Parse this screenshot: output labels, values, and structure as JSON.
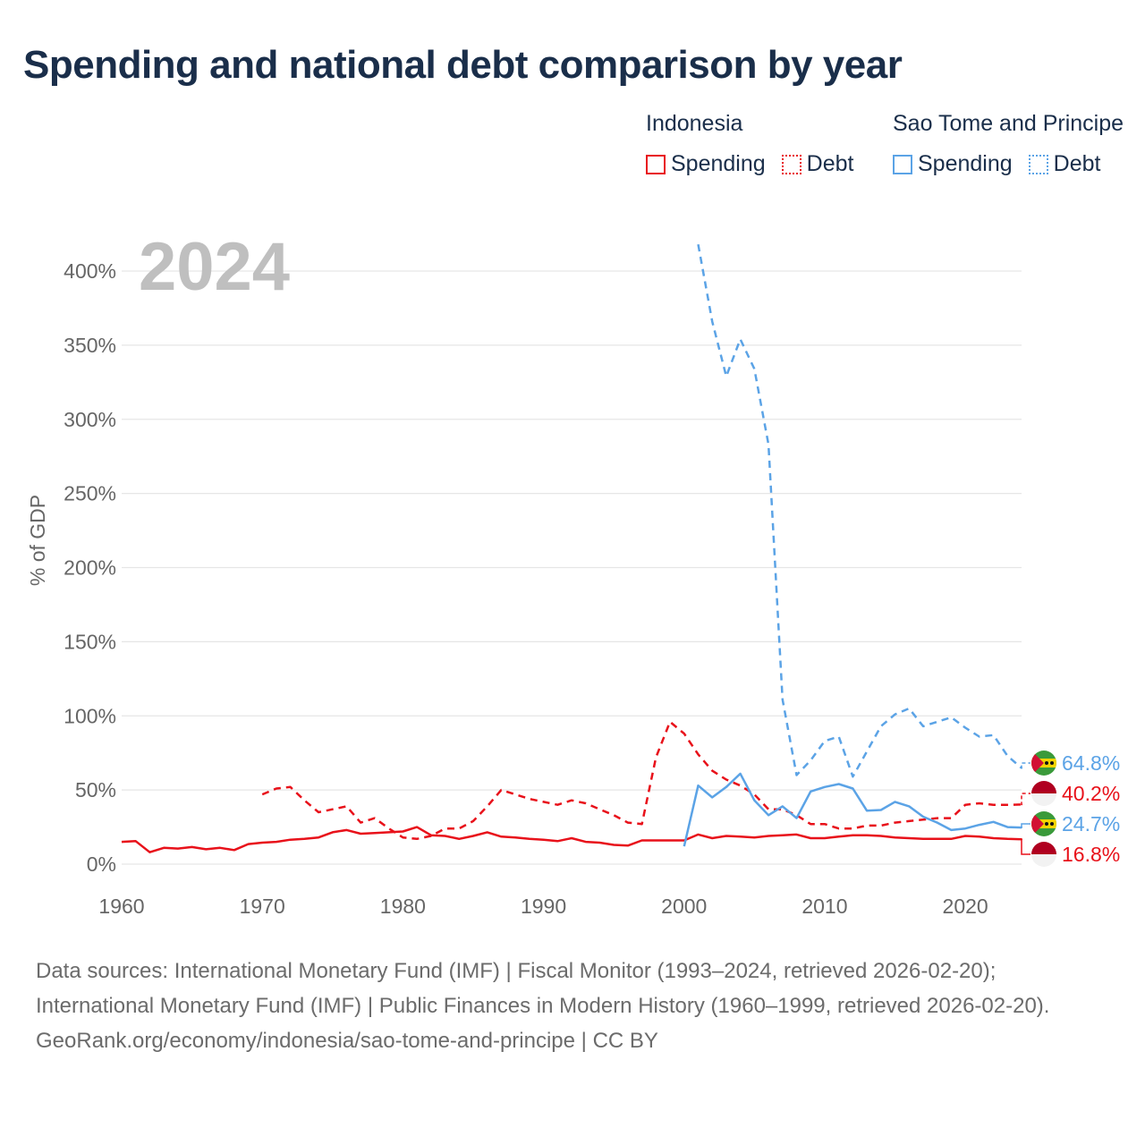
{
  "title": "Spending and national debt comparison by year",
  "legend": {
    "groups": [
      {
        "country": "Indonesia",
        "color": "#e8111a",
        "items": [
          {
            "label": "Spending",
            "style": "solid"
          },
          {
            "label": "Debt",
            "style": "dotted"
          }
        ]
      },
      {
        "country": "Sao Tome and Principe",
        "color": "#5ba3e6",
        "items": [
          {
            "label": "Spending",
            "style": "solid"
          },
          {
            "label": "Debt",
            "style": "dotted"
          }
        ]
      }
    ]
  },
  "chart_data": {
    "type": "line",
    "year_label": "2024",
    "ylabel": "% of GDP",
    "xlim": [
      1960,
      2024
    ],
    "ylim": [
      0,
      400
    ],
    "x_ticks": [
      1960,
      1970,
      1980,
      1990,
      2000,
      2010,
      2020
    ],
    "y_ticks": [
      0,
      50,
      100,
      150,
      200,
      250,
      300,
      350,
      400
    ],
    "y_tick_labels": [
      "0%",
      "50%",
      "100%",
      "150%",
      "200%",
      "250%",
      "300%",
      "350%",
      "400%"
    ],
    "grid": true,
    "series": [
      {
        "name": "Indonesia Spending",
        "country": "Indonesia",
        "color": "#e8111a",
        "dash": "solid",
        "label": "16.8%",
        "x": [
          1960,
          1961,
          1962,
          1963,
          1964,
          1965,
          1966,
          1967,
          1968,
          1969,
          1970,
          1971,
          1972,
          1973,
          1974,
          1975,
          1976,
          1977,
          1978,
          1979,
          1980,
          1981,
          1982,
          1983,
          1984,
          1985,
          1986,
          1987,
          1988,
          1989,
          1990,
          1991,
          1992,
          1993,
          1994,
          1995,
          1996,
          1997,
          1998,
          1999,
          2000,
          2001,
          2002,
          2003,
          2004,
          2005,
          2006,
          2007,
          2008,
          2009,
          2010,
          2011,
          2012,
          2013,
          2014,
          2015,
          2016,
          2017,
          2018,
          2019,
          2020,
          2021,
          2022,
          2023,
          2024
        ],
        "values": [
          15,
          15.5,
          8,
          11,
          10.5,
          11.5,
          10,
          11,
          9.5,
          13.5,
          14.5,
          15,
          16.5,
          17,
          18,
          21.5,
          23,
          20.5,
          21,
          21.5,
          22,
          25,
          19.5,
          19,
          17,
          19,
          21.5,
          18.5,
          18,
          17,
          16.5,
          15.5,
          17.5,
          15,
          14.5,
          13,
          12.5,
          16,
          16,
          16,
          16,
          20,
          17.5,
          19,
          18.5,
          18,
          19,
          19.5,
          20,
          17.5,
          17.5,
          18.5,
          19.5,
          19.5,
          19,
          18,
          17.5,
          17,
          17,
          17,
          19,
          18.5,
          17.5,
          17,
          16.8
        ]
      },
      {
        "name": "Indonesia Debt",
        "country": "Indonesia",
        "color": "#e8111a",
        "dash": "dashed",
        "label": "40.2%",
        "x": [
          1970,
          1971,
          1972,
          1973,
          1974,
          1975,
          1976,
          1977,
          1978,
          1979,
          1980,
          1981,
          1982,
          1983,
          1984,
          1985,
          1986,
          1987,
          1988,
          1989,
          1990,
          1991,
          1992,
          1993,
          1994,
          1995,
          1996,
          1997,
          1998,
          1999,
          2000,
          2001,
          2002,
          2003,
          2004,
          2005,
          2006,
          2007,
          2008,
          2009,
          2010,
          2011,
          2012,
          2013,
          2014,
          2015,
          2016,
          2017,
          2018,
          2019,
          2020,
          2021,
          2022,
          2023,
          2024
        ],
        "values": [
          47,
          51,
          52,
          43,
          35,
          37,
          39,
          28,
          31,
          24,
          18,
          17,
          19,
          24,
          24,
          29,
          39,
          50,
          47,
          44,
          42,
          40,
          43,
          41,
          37,
          33,
          28,
          27,
          72,
          96,
          88,
          74,
          63,
          57,
          53,
          47,
          37,
          37,
          33,
          27,
          27,
          24,
          24,
          26,
          26,
          28,
          29,
          30,
          31,
          31,
          40,
          41,
          40,
          40,
          40.2
        ]
      },
      {
        "name": "Sao Tome and Principe Spending",
        "country": "Sao Tome and Principe",
        "color": "#5ba3e6",
        "dash": "solid",
        "label": "24.7%",
        "x": [
          2000,
          2001,
          2002,
          2003,
          2004,
          2005,
          2006,
          2007,
          2008,
          2009,
          2010,
          2011,
          2012,
          2013,
          2014,
          2015,
          2016,
          2017,
          2018,
          2019,
          2020,
          2021,
          2022,
          2023,
          2024
        ],
        "values": [
          12,
          53,
          45,
          52,
          61,
          43,
          33,
          39,
          31,
          49,
          52,
          54,
          51,
          36,
          36.5,
          42,
          39,
          32,
          28,
          23,
          24,
          26.5,
          28.5,
          25,
          24.7
        ]
      },
      {
        "name": "Sao Tome and Principe Debt",
        "country": "Sao Tome and Principe",
        "color": "#5ba3e6",
        "dash": "dashed",
        "label": "64.8%",
        "x": [
          2001,
          2002,
          2003,
          2004,
          2005,
          2006,
          2007,
          2008,
          2009,
          2010,
          2011,
          2012,
          2013,
          2014,
          2015,
          2016,
          2017,
          2018,
          2019,
          2020,
          2021,
          2022,
          2023,
          2024
        ],
        "values": [
          418,
          366,
          329,
          354,
          334,
          283,
          111,
          60,
          70,
          83,
          86,
          59,
          76,
          93,
          101,
          105,
          93,
          96,
          99,
          92,
          86,
          87,
          73,
          64.8
        ]
      }
    ]
  },
  "footer": {
    "sources": "Data sources: International Monetary Fund (IMF) | Fiscal Monitor (1993–2024, retrieved 2026-02-20); International Monetary Fund (IMF) | Public Finances in Modern History (1960–1999, retrieved 2026-02-20).",
    "credit": "GeoRank.org/economy/indonesia/sao-tome-and-principe | CC BY"
  }
}
